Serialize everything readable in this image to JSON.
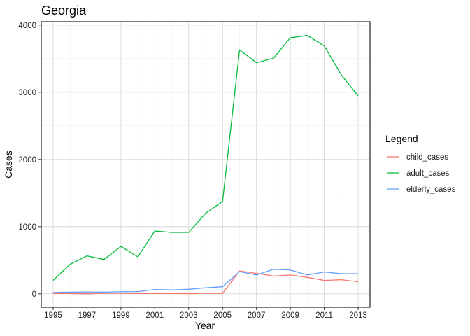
{
  "chart_data": {
    "type": "line",
    "title": "Georgia",
    "xlabel": "Year",
    "ylabel": "Cases",
    "xlim": [
      1994.3,
      2013.7
    ],
    "ylim": [
      -200,
      4050
    ],
    "x_ticks": [
      1995,
      1997,
      1999,
      2001,
      2003,
      2005,
      2007,
      2009,
      2011,
      2013
    ],
    "y_ticks": [
      0,
      1000,
      2000,
      3000,
      4000
    ],
    "grid": true,
    "legend": {
      "title": "Legend",
      "position": "right"
    },
    "x": [
      1995,
      1996,
      1997,
      1998,
      1999,
      2000,
      2001,
      2002,
      2003,
      2004,
      2005,
      2006,
      2007,
      2008,
      2009,
      2010,
      2011,
      2012,
      2013
    ],
    "series": [
      {
        "name": "child_cases",
        "color": "#F8766D",
        "values": [
          5,
          5,
          0,
          8,
          8,
          5,
          5,
          5,
          2,
          8,
          5,
          340,
          305,
          265,
          280,
          245,
          200,
          210,
          180
        ]
      },
      {
        "name": "adult_cases",
        "color": "#00BA38",
        "values": [
          200,
          440,
          565,
          510,
          705,
          550,
          935,
          915,
          915,
          1200,
          1375,
          3630,
          3440,
          3505,
          3810,
          3845,
          3690,
          3260,
          2945
        ]
      },
      {
        "name": "elderly_cases",
        "color": "#619CFF",
        "values": [
          20,
          25,
          28,
          25,
          30,
          33,
          65,
          58,
          68,
          90,
          105,
          330,
          280,
          365,
          355,
          280,
          325,
          300,
          300
        ]
      }
    ]
  }
}
